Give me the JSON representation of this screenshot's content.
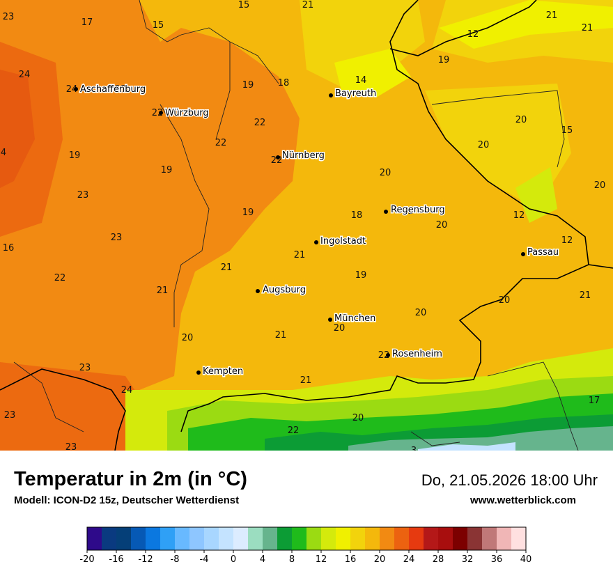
{
  "title": "Temperatur in 2m (in °C)",
  "model": "Modell: ICON-D2 15z, Deutscher Wetterdienst",
  "datetime": "Do, 21.05.2026 18:00 Uhr",
  "website": "www.wetterblick.com",
  "cities": [
    {
      "name": "Aschaffenburg"
    },
    {
      "name": "Würzburg"
    },
    {
      "name": "Bayreuth"
    },
    {
      "name": "Nürnberg"
    },
    {
      "name": "Regensburg"
    },
    {
      "name": "Ingolstadt"
    },
    {
      "name": "Passau"
    },
    {
      "name": "Augsburg"
    },
    {
      "name": "München"
    },
    {
      "name": "Rosenheim"
    },
    {
      "name": "Kempten"
    }
  ],
  "temperature_labels": [
    "23",
    "17",
    "15",
    "15",
    "21",
    "21",
    "21",
    "12",
    "24",
    "24",
    "23",
    "19",
    "18",
    "14",
    "19",
    "22",
    "22",
    "20",
    "15",
    "20",
    "4",
    "19",
    "22",
    "22",
    "19",
    "20",
    "20",
    "23",
    "19",
    "18",
    "21",
    "12",
    "20",
    "12",
    "16",
    "23",
    "21",
    "21",
    "19",
    "22",
    "21",
    "21",
    "20",
    "20",
    "20",
    "21",
    "20",
    "22",
    "23",
    "21",
    "24",
    "17",
    "23",
    "22",
    "20",
    "23",
    "3"
  ],
  "legend": {
    "ticks": [
      "-20",
      "-16",
      "-12",
      "-8",
      "-4",
      "0",
      "4",
      "8",
      "12",
      "16",
      "20",
      "24",
      "28",
      "32",
      "36",
      "40"
    ],
    "colors": [
      "#2e0a8a",
      "#0a3a80",
      "#053f78",
      "#0659b5",
      "#0b78e0",
      "#2fa0f6",
      "#68b9ff",
      "#8ec6ff",
      "#a8d6ff",
      "#c4e3ff",
      "#dcecff",
      "#9bddc0",
      "#66b48d",
      "#0c9c35",
      "#1fbb1b",
      "#9bdb12",
      "#d4ea0c",
      "#f0f000",
      "#f2d30c",
      "#f4b80c",
      "#f28a12",
      "#ec6210",
      "#e63a10",
      "#b41818",
      "#a80e0e",
      "#7c0000",
      "#8a3434",
      "#c07878",
      "#f0b6b6",
      "#ffe0e0"
    ]
  }
}
